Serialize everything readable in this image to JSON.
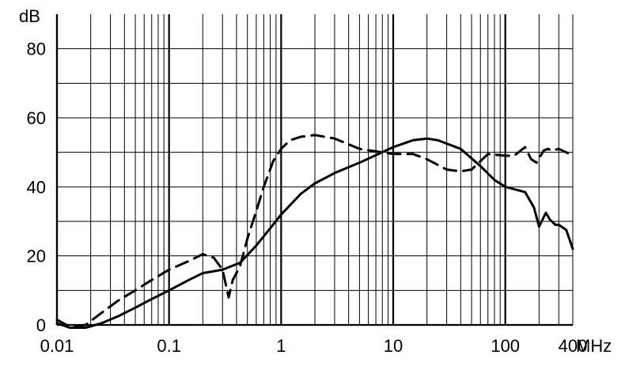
{
  "chart_data": {
    "type": "line",
    "x_scale": "log",
    "xlim": [
      0.01,
      400
    ],
    "ylim": [
      0,
      90
    ],
    "grid": true,
    "xlabel": "MHz",
    "ylabel": "dB",
    "x_ticks": [
      {
        "value": 0.01,
        "label": "0.01"
      },
      {
        "value": 0.1,
        "label": "0.1"
      },
      {
        "value": 1,
        "label": "1"
      },
      {
        "value": 10,
        "label": "10"
      },
      {
        "value": 100,
        "label": "100"
      },
      {
        "value": 400,
        "label": "400"
      }
    ],
    "y_ticks": [
      {
        "value": 0,
        "label": "0"
      },
      {
        "value": 20,
        "label": "20"
      },
      {
        "value": 40,
        "label": "40"
      },
      {
        "value": 60,
        "label": "60"
      },
      {
        "value": 80,
        "label": "80"
      }
    ],
    "series": [
      {
        "style": "solid",
        "x": [
          0.01,
          0.013,
          0.018,
          0.025,
          0.035,
          0.05,
          0.07,
          0.1,
          0.15,
          0.2,
          0.3,
          0.43,
          0.6,
          0.8,
          1,
          1.5,
          2,
          3,
          5,
          10,
          15,
          20,
          25,
          40,
          60,
          80,
          100,
          150,
          180,
          200,
          230,
          250,
          280,
          300,
          350,
          400
        ],
        "y": [
          0.5,
          -0.8,
          -0.8,
          0.5,
          2.5,
          5,
          7.5,
          10,
          13,
          15,
          16,
          18,
          23,
          28,
          32,
          38,
          41,
          44,
          47,
          51.5,
          53.5,
          54,
          53.5,
          51,
          46,
          42,
          40,
          38.5,
          34,
          28.5,
          32.5,
          30.5,
          29,
          29,
          27.5,
          22
        ]
      },
      {
        "style": "dashed",
        "x": [
          0.01,
          0.013,
          0.018,
          0.025,
          0.035,
          0.05,
          0.07,
          0.1,
          0.15,
          0.2,
          0.25,
          0.3,
          0.34,
          0.37,
          0.43,
          0.5,
          0.6,
          0.7,
          0.85,
          1,
          1.2,
          1.5,
          2,
          3,
          5,
          8,
          10,
          15,
          20,
          30,
          40,
          50,
          70,
          100,
          120,
          150,
          170,
          190,
          220,
          240,
          260,
          300,
          350,
          400
        ],
        "y": [
          1.5,
          -0.5,
          0,
          3.5,
          7,
          10,
          13,
          16,
          18.5,
          20.5,
          19.5,
          16,
          8,
          13,
          17,
          25,
          33,
          40,
          47.5,
          51,
          53.5,
          54.5,
          55,
          54,
          51,
          50,
          49.5,
          49.5,
          48,
          45,
          44.5,
          45,
          49.5,
          49,
          49,
          51.5,
          48,
          47,
          50.5,
          51,
          50.5,
          51,
          50,
          49
        ]
      }
    ]
  }
}
